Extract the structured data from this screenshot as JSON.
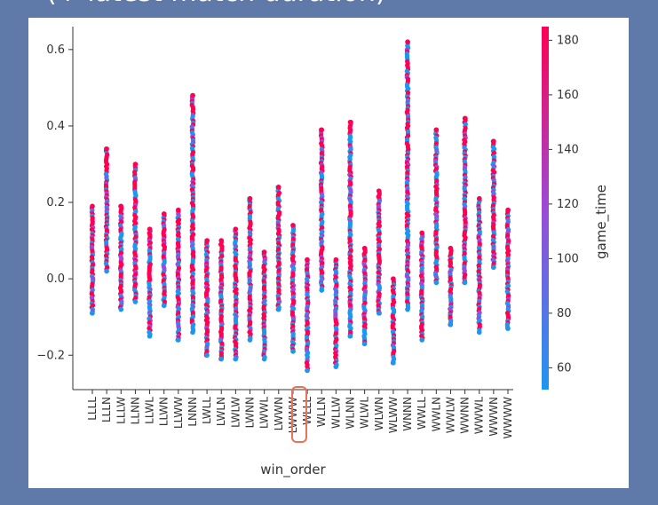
{
  "slide": {
    "heading": "(+ latest match duration)"
  },
  "colors": {
    "background": "#5f79a8",
    "panel": "#ffffff",
    "highlight": "#e8735a",
    "colormap_low": "#1e96f0",
    "colormap_mid": "#9b4bd6",
    "colormap_high": "#ff0052"
  },
  "chart_data": {
    "type": "scatter",
    "title": "",
    "xlabel": "win_order",
    "ylabel": "",
    "ylim": [
      -0.29,
      0.66
    ],
    "yticks": [
      -0.2,
      0.0,
      0.2,
      0.4,
      0.6
    ],
    "ytick_labels": [
      "−0.2",
      "0.0",
      "0.2",
      "0.4",
      "0.6"
    ],
    "grid": false,
    "colorbar": {
      "label": "game_time",
      "range": [
        52,
        185
      ],
      "ticks": [
        60,
        80,
        100,
        120,
        140,
        160,
        180
      ]
    },
    "highlighted_category": "LWWW",
    "categories": [
      "LLLL",
      "LLLN",
      "LLLW",
      "LLNN",
      "LLWL",
      "LLWN",
      "LLWW",
      "LNNN",
      "LWLL",
      "LWLN",
      "LWLW",
      "LWNN",
      "LWWL",
      "LWWN",
      "LWWW",
      "WLLL",
      "WLLN",
      "WLLW",
      "WLNN",
      "WLWL",
      "WLWN",
      "WLWW",
      "WNNN",
      "WWLL",
      "WWLN",
      "WWLW",
      "WWNN",
      "WWWL",
      "WWWN",
      "WWWW"
    ],
    "strips": [
      {
        "category": "LLLL",
        "y_min": -0.09,
        "y_max": 0.19
      },
      {
        "category": "LLLN",
        "y_min": 0.02,
        "y_max": 0.34
      },
      {
        "category": "LLLW",
        "y_min": -0.08,
        "y_max": 0.19
      },
      {
        "category": "LLNN",
        "y_min": -0.06,
        "y_max": 0.3
      },
      {
        "category": "LLWL",
        "y_min": -0.15,
        "y_max": 0.13
      },
      {
        "category": "LLWN",
        "y_min": -0.07,
        "y_max": 0.17
      },
      {
        "category": "LLWW",
        "y_min": -0.16,
        "y_max": 0.18
      },
      {
        "category": "LNNN",
        "y_min": -0.14,
        "y_max": 0.48
      },
      {
        "category": "LWLL",
        "y_min": -0.2,
        "y_max": 0.1
      },
      {
        "category": "LWLN",
        "y_min": -0.21,
        "y_max": 0.1
      },
      {
        "category": "LWLW",
        "y_min": -0.21,
        "y_max": 0.13
      },
      {
        "category": "LWNN",
        "y_min": -0.16,
        "y_max": 0.21
      },
      {
        "category": "LWWL",
        "y_min": -0.21,
        "y_max": 0.07
      },
      {
        "category": "LWWN",
        "y_min": -0.08,
        "y_max": 0.24
      },
      {
        "category": "LWWW",
        "y_min": -0.19,
        "y_max": 0.14
      },
      {
        "category": "WLLL",
        "y_min": -0.24,
        "y_max": 0.05
      },
      {
        "category": "WLLN",
        "y_min": -0.03,
        "y_max": 0.39
      },
      {
        "category": "WLLW",
        "y_min": -0.23,
        "y_max": 0.05
      },
      {
        "category": "WLNN",
        "y_min": -0.15,
        "y_max": 0.41
      },
      {
        "category": "WLWL",
        "y_min": -0.17,
        "y_max": 0.08
      },
      {
        "category": "WLWN",
        "y_min": -0.09,
        "y_max": 0.23
      },
      {
        "category": "WLWW",
        "y_min": -0.22,
        "y_max": 0.0
      },
      {
        "category": "WNNN",
        "y_min": -0.08,
        "y_max": 0.62
      },
      {
        "category": "WWLL",
        "y_min": -0.16,
        "y_max": 0.12
      },
      {
        "category": "WWLN",
        "y_min": -0.01,
        "y_max": 0.39
      },
      {
        "category": "WWLW",
        "y_min": -0.12,
        "y_max": 0.08
      },
      {
        "category": "WWNN",
        "y_min": -0.01,
        "y_max": 0.42
      },
      {
        "category": "WWWL",
        "y_min": -0.14,
        "y_max": 0.21
      },
      {
        "category": "WWWN",
        "y_min": 0.03,
        "y_max": 0.36
      },
      {
        "category": "WWWW",
        "y_min": -0.13,
        "y_max": 0.18
      }
    ]
  }
}
